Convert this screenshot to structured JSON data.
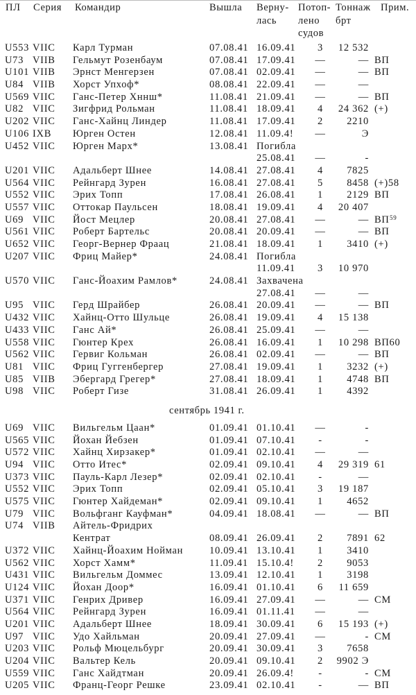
{
  "header": {
    "boat": "ПЛ",
    "series": "Серия",
    "commander": "Командир",
    "out": "Вышла",
    "ret1": "Верну-",
    "ret2": "лась",
    "sunk1": "Потоп-",
    "sunk2": "лено",
    "sunk3": "судов",
    "ton1": "Тоннаж",
    "ton2": "брт",
    "note": "Прим."
  },
  "august": [
    {
      "boat": "U553",
      "series": "VIIC",
      "commander": "Карл Турман",
      "out": "07.08.41",
      "ret": "16.09.41",
      "sunk": "3",
      "tonnage": "12 532",
      "note": ""
    },
    {
      "boat": "U73",
      "series": "VIIB",
      "commander": "Гельмут Розенбаум",
      "out": "07.08.41",
      "ret": "17.09.41",
      "sunk": "—",
      "tonnage": "—",
      "note": "ВП"
    },
    {
      "boat": "U101",
      "series": "VIIB",
      "commander": "Эрнст Менгерзен",
      "out": "07.08.41",
      "ret": "02.09.41",
      "sunk": "—",
      "tonnage": "—",
      "note": "ВП"
    },
    {
      "boat": "U84",
      "series": "VIIB",
      "commander": "Хорст Упхоф*",
      "out": "08.08.41",
      "ret": "22.09.41",
      "sunk": "—",
      "tonnage": "—",
      "note": ""
    },
    {
      "boat": "U569",
      "series": "VIIC",
      "commander": "Ганс-Петер Хннш*",
      "out": "11.08.41",
      "ret": "21.09.41",
      "sunk": "—",
      "tonnage": "—",
      "note": "ВП"
    },
    {
      "boat": "U82",
      "series": "VIIC",
      "commander": "Зигфрид Рольман",
      "out": "11.08.41",
      "ret": "18.09.41",
      "sunk": "4",
      "tonnage": "24 362",
      "note": "(+)"
    },
    {
      "boat": "U202",
      "series": "VIIC",
      "commander": "Ганс-Хайнц Линдер",
      "out": "11.08.41",
      "ret": "17.09.41",
      "sunk": "2",
      "tonnage": "2210",
      "note": ""
    },
    {
      "boat": "U106",
      "series": "IXB",
      "commander": "Юрген Остен",
      "out": "12.08.41",
      "ret": "11.09.4!",
      "sunk": "—",
      "tonnage": "Э",
      "note": ""
    },
    {
      "boat": "U452",
      "series": "VIIC",
      "commander": "Юрген Марх*",
      "out": "13.08.41",
      "ret_status": "Погибла",
      "ret": "25.08.41",
      "sunk": "—",
      "tonnage": "-",
      "note": ""
    },
    {
      "boat": "U201",
      "series": "VIIC",
      "commander": "Адальберт Шнее",
      "out": "14.08.41",
      "ret": "27.08.41",
      "sunk": "4",
      "tonnage": "7825",
      "note": ""
    },
    {
      "boat": "U564",
      "series": "VIIC",
      "commander": "Рейнгард Зурен",
      "out": "16.08.41",
      "ret": "27.08.41",
      "sunk": "5",
      "tonnage": "8458",
      "note": "(+)58"
    },
    {
      "boat": "U552",
      "series": "VIIC",
      "commander": "Эрих Топп",
      "out": "17.08.41",
      "ret": "26.08.41",
      "sunk": "1",
      "tonnage": "2129",
      "note": "ВП"
    },
    {
      "boat": "U557",
      "series": "VIIC",
      "commander": "Оттокар Паульсен",
      "out": "18.08.41",
      "ret": "19.09.41",
      "sunk": "4",
      "tonnage": "20 407",
      "note": ""
    },
    {
      "boat": "U69",
      "series": "VIIC",
      "commander": "Йост Мецлер",
      "out": "20.08.41",
      "ret": "27.08.41",
      "sunk": "—",
      "tonnage": "—",
      "note": "ВП",
      "sup": "59"
    },
    {
      "boat": "U561",
      "series": "VIIC",
      "commander": "Роберт Бартельс",
      "out": "20.08.41",
      "ret": "20.09.41",
      "sunk": "—",
      "tonnage": "—",
      "note": "ВП"
    },
    {
      "boat": "U652",
      "series": "VIIC",
      "commander": "Георг-Вернер Фраац",
      "out": "21.08.41",
      "ret": "18.09.41",
      "sunk": "1",
      "tonnage": "3410",
      "note": "(+)"
    },
    {
      "boat": "U207",
      "series": "VIIC",
      "commander": "Фриц Майер*",
      "out": "24.08.41",
      "ret_status": "Погибла",
      "ret": "11.09.41",
      "sunk": "3",
      "tonnage": "10 970",
      "note": ""
    },
    {
      "boat": "U570",
      "series": "VIIC",
      "commander": "Ганс-Йоахим Рамлов*",
      "out": "24.08.41",
      "ret_status": "Захвачена",
      "ret": "27.08.41",
      "sunk": "—",
      "tonnage": "—",
      "note": ""
    },
    {
      "boat": "U95",
      "series": "VIIC",
      "commander": "Герд Шрайбер",
      "out": "26.08.41",
      "ret": "20.09.41",
      "sunk": "—",
      "tonnage": "—",
      "note": "ВП"
    },
    {
      "boat": "U432",
      "series": "VIIC",
      "commander": "Хайнц-Отто Шульце",
      "out": "26.08.41",
      "ret": "19.09.41",
      "sunk": "4",
      "tonnage": "15 138",
      "note": ""
    },
    {
      "boat": "U433",
      "series": "VIIC",
      "commander": "Ганс Ай*",
      "out": "26.08.41",
      "ret": "25.09.41",
      "sunk": "—",
      "tonnage": "—",
      "note": ""
    },
    {
      "boat": "U558",
      "series": "VIIC",
      "commander": "Гюнтер Крех",
      "out": "26.08.41",
      "ret": "16.09.41",
      "sunk": "1",
      "tonnage": "10 298",
      "note": "ВП60"
    },
    {
      "boat": "U562",
      "series": "VIIC",
      "commander": "Гервиг Кольман",
      "out": "26.08.41",
      "ret": "02.09.41",
      "sunk": "—",
      "tonnage": "—",
      "note": "ВП"
    },
    {
      "boat": "U81",
      "series": "VIIC",
      "commander": "Фриц Гуггенбергер",
      "out": "27.08.41",
      "ret": "19.09.41",
      "sunk": "1",
      "tonnage": "3232",
      "note": "(+)"
    },
    {
      "boat": "U85",
      "series": "VIIB",
      "commander": "Эбергард Грегер*",
      "out": "27.08.41",
      "ret": "18.09.41",
      "sunk": "1",
      "tonnage": "4748",
      "note": "ВП"
    },
    {
      "boat": "U98",
      "series": "VIIC",
      "commander": "Роберт Гизе",
      "out": "31.08.41",
      "ret": "26.09.41",
      "sunk": "1",
      "tonnage": "4392",
      "note": ""
    }
  ],
  "month_heading": "сентябрь 1941 г.",
  "september": [
    {
      "boat": "U69",
      "series": "VIIC",
      "commander": "Вильгельм Цаан*",
      "out": "01.09.41",
      "ret": "01.10.41",
      "sunk": "—",
      "tonnage": "-",
      "note": ""
    },
    {
      "boat": "U565",
      "series": "VIIC",
      "commander": "Йохан Йебзен",
      "out": "01.09.41",
      "ret": "07.10.41",
      "sunk": "-",
      "tonnage": "-",
      "note": ""
    },
    {
      "boat": "U572",
      "series": "VIIC",
      "commander": "Хайнц Хирзакер*",
      "out": "01.09.41",
      "ret": "02.10.41",
      "sunk": "—",
      "tonnage": "—",
      "note": ""
    },
    {
      "boat": "U94",
      "series": "VIIC",
      "commander": "Отто Итес*",
      "out": "02.09.41",
      "ret": "09.10.41",
      "sunk": "4",
      "tonnage": "29 319",
      "note": "61"
    },
    {
      "boat": "U373",
      "series": "VIIC",
      "commander": "Пауль-Карл Лезер*",
      "out": "02.09.41",
      "ret": "02.10.41",
      "sunk": "-",
      "tonnage": "—",
      "note": ""
    },
    {
      "boat": "U552",
      "series": "VIIC",
      "commander": "Эрих Топп",
      "out": "02.09.41",
      "ret": "05.10.41",
      "sunk": "3",
      "tonnage": "19 187",
      "note": ""
    },
    {
      "boat": "U575",
      "series": "VIIC",
      "commander": "Гюнтер Хайдеман*",
      "out": "02.09.41",
      "ret": "09.10.41",
      "sunk": "1",
      "tonnage": "4652",
      "note": ""
    },
    {
      "boat": "U79",
      "series": "VIIC",
      "commander": "Вольфганг Кауфман*",
      "out": "04.09.41",
      "ret": "18.08.41",
      "sunk": "—",
      "tonnage": "—",
      "note": "ВП"
    },
    {
      "boat": "U74",
      "series": "VIIB",
      "commander": "Айтель-Фридрих",
      "commander2": "Кентрат",
      "out": "08.09.41",
      "ret": "26.09.41",
      "sunk": "2",
      "tonnage": "7891",
      "note": "62"
    },
    {
      "boat": "U372",
      "series": "VIIC",
      "commander": "Хайнц-Йоахим Нойман",
      "out": "10.09.41",
      "ret": "13.10.41",
      "sunk": "1",
      "tonnage": "3410",
      "note": ""
    },
    {
      "boat": "U562",
      "series": "VIIC",
      "commander": "Хорст Хамм*",
      "out": "11.09.41",
      "ret": "15.10.4!",
      "sunk": "2",
      "tonnage": "9053",
      "note": ""
    },
    {
      "boat": "U431",
      "series": "VIIC",
      "commander": "Вильгельм Доммес",
      "out": "13.09.41",
      "ret": "12.10.41",
      "sunk": "1",
      "tonnage": "3198",
      "note": ""
    },
    {
      "boat": "U124",
      "series": "VIIC",
      "commander": "Йохан Доор*",
      "out": "16.09.41",
      "ret": "01.10.41",
      "sunk": "6",
      "tonnage": "11 659",
      "note": ""
    },
    {
      "boat": "U371",
      "series": "VIIC",
      "commander": "Генрих Дривер",
      "out": "16.09.41",
      "ret": "27.09.41",
      "sunk": "—",
      "tonnage": "—",
      "note": "СМ"
    },
    {
      "boat": "U564",
      "series": "VIIC",
      "commander": "Рейнгард Зурен",
      "out": "16.09.41",
      "ret": "01.11.41",
      "sunk": "—",
      "tonnage": "—",
      "note": ""
    },
    {
      "boat": "U201",
      "series": "VIIC",
      "commander": "Адальберт Шнее",
      "out": "18.09.41",
      "ret": "30.09.41",
      "sunk": "6",
      "tonnage": "15 193",
      "note": "(+)"
    },
    {
      "boat": "U97",
      "series": "VIIC",
      "commander": "Удо Хайльман",
      "out": "20.09.41",
      "ret": "27.09.41",
      "sunk": "—",
      "tonnage": "-",
      "note": "СМ"
    },
    {
      "boat": "U203",
      "series": "VIIC",
      "commander": "Рольф Мюцельбург",
      "out": "20.09.41",
      "ret": "30.09.41",
      "sunk": "3",
      "tonnage": "7658",
      "note": ""
    },
    {
      "boat": "U204",
      "series": "VIIC",
      "commander": "Вальтер Кель",
      "out": "20.09.41",
      "ret": "09.10.41",
      "sunk": "2",
      "tonnage": "9902 Э",
      "note": ""
    },
    {
      "boat": "U559",
      "series": "VIIC",
      "commander": "Ганс Хайдтман",
      "out": "20.09.41",
      "ret": "26.09.4!",
      "sunk": "-",
      "tonnage": "-",
      "note": "СМ"
    },
    {
      "boat": "U205",
      "series": "VIIC",
      "commander": "Франц-Георг Решке",
      "out": "23.09.41",
      "ret": "02.10.41",
      "sunk": "-",
      "tonnage": "—",
      "note": "ВП"
    }
  ]
}
